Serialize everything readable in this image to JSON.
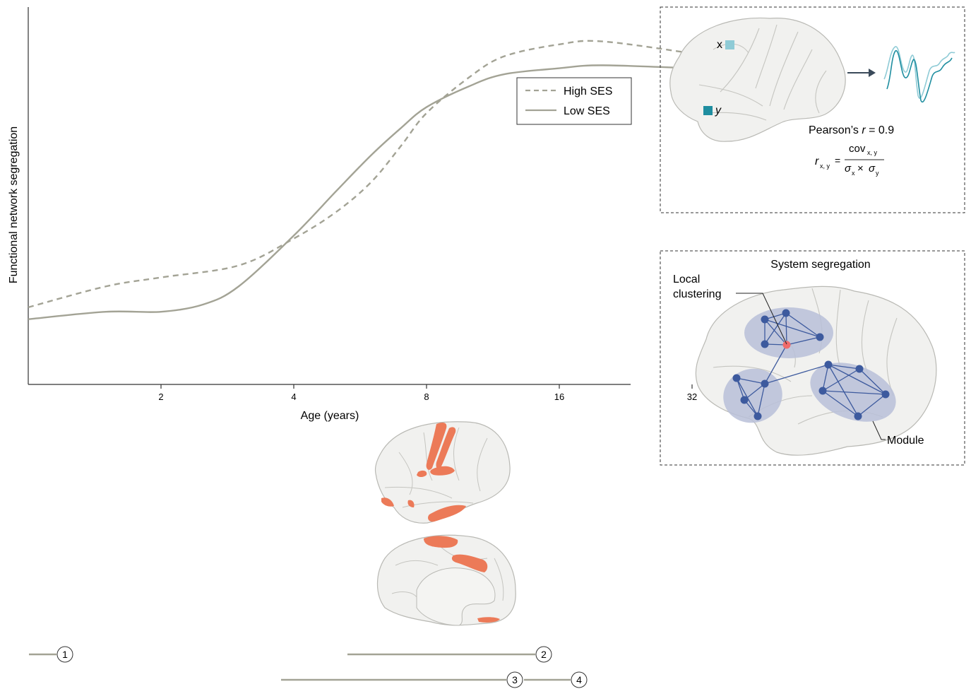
{
  "chart_data": {
    "type": "line",
    "ylabel": "Functional network segregation",
    "xlabel": "Age (years)",
    "x_scale": "log2",
    "x_ticks": [
      "2",
      "4",
      "8",
      "16",
      "32"
    ],
    "xlim": [
      1,
      32
    ],
    "ylim": [
      0,
      1
    ],
    "legend_position": "top-right",
    "series": [
      {
        "name": "High SES",
        "style": "dashed",
        "color": "#a3a395",
        "points": [
          [
            1,
            0.11
          ],
          [
            1.5,
            0.18
          ],
          [
            2,
            0.21
          ],
          [
            3,
            0.25
          ],
          [
            4,
            0.34
          ],
          [
            5,
            0.43
          ],
          [
            6,
            0.53
          ],
          [
            7,
            0.65
          ],
          [
            8,
            0.76
          ],
          [
            10,
            0.88
          ],
          [
            12,
            0.95
          ],
          [
            16,
            0.99
          ],
          [
            20,
            1.0
          ],
          [
            32,
            0.96
          ]
        ]
      },
      {
        "name": "Low SES",
        "style": "solid",
        "color": "#a3a395",
        "points": [
          [
            1,
            0.07
          ],
          [
            1.5,
            0.095
          ],
          [
            2,
            0.095
          ],
          [
            2.5,
            0.12
          ],
          [
            3,
            0.18
          ],
          [
            4,
            0.35
          ],
          [
            5,
            0.5
          ],
          [
            6,
            0.62
          ],
          [
            7,
            0.71
          ],
          [
            8,
            0.78
          ],
          [
            10,
            0.85
          ],
          [
            12,
            0.89
          ],
          [
            16,
            0.91
          ],
          [
            20,
            0.92
          ],
          [
            32,
            0.91
          ]
        ]
      }
    ]
  },
  "correlation_panel": {
    "label_x": "x",
    "label_y": "y",
    "pearson_prefix": "Pearson’s ",
    "pearson_r": "r",
    "pearson_value": " = 0.9",
    "formula_r": "r",
    "formula_r_sub": "x, y",
    "formula_eq": "=",
    "formula_num": "cov",
    "formula_num_sub": "x, y",
    "formula_sigma1": "σ",
    "formula_sigma1_sub": "x",
    "formula_times": "×",
    "formula_sigma2": "σ",
    "formula_sigma2_sub": "y",
    "color_x": "#8fcbd6",
    "color_y": "#1f8ea0"
  },
  "segregation_panel": {
    "title": "System segregation",
    "label_local": "Local",
    "label_clustering": "clustering",
    "label_module": "Module",
    "node_color": "#3d5a9e",
    "hub_color": "#f06b6b",
    "module_color": "#b8bfd8"
  },
  "brain_highlight_color": "#ec7a58",
  "timeline": {
    "markers": [
      "1",
      "2",
      "3",
      "4"
    ]
  }
}
